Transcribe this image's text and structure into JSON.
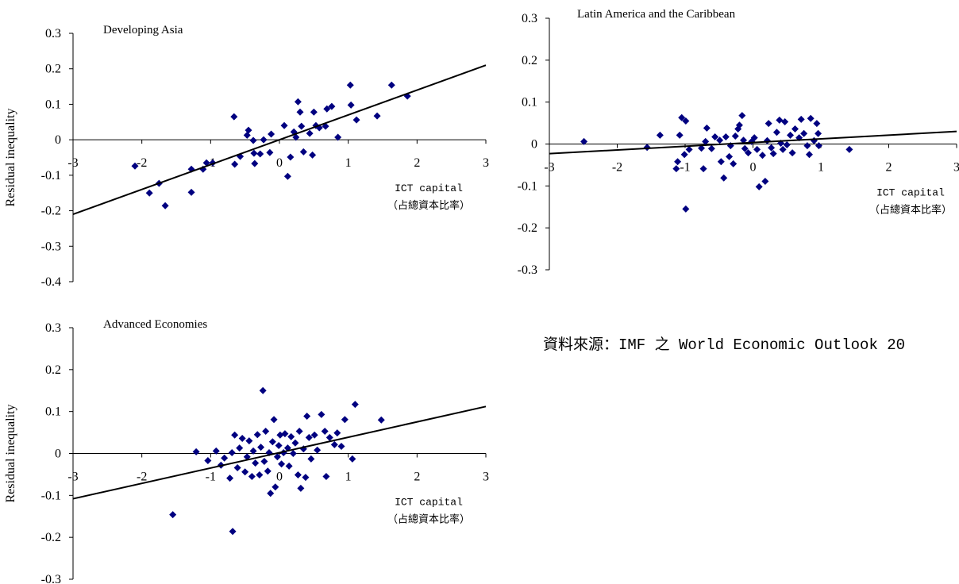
{
  "chart_data": [
    {
      "type": "scatter",
      "title": "Developing Asia",
      "ylabel": "Residual inequality",
      "xlabel": [
        "ICT capital",
        "（占總資本比率）"
      ],
      "color": "#000080",
      "xlim": [
        -3,
        3
      ],
      "xticks": [
        -3,
        -2,
        -1,
        0,
        1,
        2,
        3
      ],
      "ylim": [
        -0.4,
        0.3
      ],
      "yticks": [
        -0.4,
        -0.3,
        -0.2,
        -0.1,
        0,
        0.1,
        0.2,
        0.3
      ],
      "x": [
        -2.1,
        -1.89,
        -1.75,
        -1.66,
        -1.28,
        -1.28,
        -1.11,
        -1.06,
        -0.97,
        -0.66,
        -0.65,
        -0.57,
        -0.47,
        -0.45,
        -0.38,
        -0.37,
        -0.36,
        -0.28,
        -0.23,
        -0.14,
        -0.12,
        0.07,
        0.12,
        0.16,
        0.21,
        0.24,
        0.27,
        0.3,
        0.32,
        0.35,
        0.44,
        0.48,
        0.5,
        0.53,
        0.58,
        0.67,
        0.69,
        0.76,
        0.85,
        1.03,
        1.04,
        1.12,
        1.42,
        1.63,
        1.86
      ],
      "values": [
        -0.074,
        -0.15,
        -0.123,
        -0.186,
        -0.083,
        -0.148,
        -0.083,
        -0.065,
        -0.065,
        0.065,
        -0.069,
        -0.047,
        0.013,
        0.027,
        -0.002,
        -0.038,
        -0.067,
        -0.04,
        0,
        -0.036,
        0.016,
        0.04,
        -0.103,
        -0.049,
        0.022,
        0.007,
        0.107,
        0.078,
        0.038,
        -0.034,
        0.018,
        -0.043,
        0.078,
        0.04,
        0.034,
        0.038,
        0.087,
        0.094,
        0.007,
        0.154,
        0.098,
        0.056,
        0.067,
        0.154,
        0.123
      ],
      "trendline": {
        "x": [
          -3,
          3
        ],
        "y": [
          -0.21,
          0.21
        ]
      }
    },
    {
      "type": "scatter",
      "title": "Latin America and the Caribbean",
      "xlabel": [
        "ICT capital",
        "（占總資本比率）"
      ],
      "color": "#000080",
      "xlim": [
        -3,
        3
      ],
      "xticks": [
        -3,
        -2,
        -1,
        0,
        1,
        2,
        3
      ],
      "ylim": [
        -0.3,
        0.3
      ],
      "yticks": [
        -0.3,
        -0.2,
        -0.1,
        0,
        0.1,
        0.2,
        0.3
      ],
      "x": [
        -2.49,
        -1.56,
        -1.37,
        -1.13,
        -1.11,
        -1.08,
        -1.05,
        -1.01,
        -0.99,
        -0.99,
        -0.94,
        -0.76,
        -0.73,
        -0.7,
        -0.68,
        -0.61,
        -0.56,
        -0.49,
        -0.47,
        -0.43,
        -0.4,
        -0.35,
        -0.33,
        -0.29,
        -0.26,
        -0.22,
        -0.2,
        -0.16,
        -0.14,
        -0.12,
        -0.07,
        -0.02,
        0.02,
        0.06,
        0.09,
        0.14,
        0.18,
        0.21,
        0.23,
        0.27,
        0.3,
        0.35,
        0.39,
        0.41,
        0.44,
        0.47,
        0.5,
        0.55,
        0.58,
        0.62,
        0.68,
        0.71,
        0.75,
        0.8,
        0.83,
        0.85,
        0.9,
        0.94,
        0.96,
        0.97,
        1.42
      ],
      "values": [
        0.006,
        -0.008,
        0.021,
        -0.059,
        -0.042,
        0.021,
        0.063,
        -0.025,
        0.055,
        -0.155,
        -0.013,
        -0.01,
        -0.059,
        0.006,
        0.038,
        -0.011,
        0.017,
        0.009,
        -0.042,
        -0.081,
        0.017,
        -0.03,
        -0.004,
        -0.047,
        0.019,
        0.036,
        0.045,
        0.068,
        0.009,
        -0.011,
        -0.021,
        0.006,
        0.015,
        -0.013,
        -0.102,
        -0.027,
        -0.089,
        0.008,
        0.049,
        -0.009,
        -0.023,
        0.028,
        0.057,
        0.002,
        -0.013,
        0.053,
        -0.002,
        0.021,
        -0.021,
        0.036,
        0.015,
        0.059,
        0.025,
        -0.004,
        -0.025,
        0.061,
        0.008,
        0.049,
        0.025,
        -0.004,
        -0.013
      ],
      "trendline": {
        "x": [
          -3,
          3
        ],
        "y": [
          -0.023,
          0.03
        ]
      }
    },
    {
      "type": "scatter",
      "title": "Advanced Economies",
      "ylabel": "Residual inequality",
      "xlabel": [
        "ICT capital",
        "（占總資本比率）"
      ],
      "color": "#000080",
      "xlim": [
        -3,
        3
      ],
      "xticks": [
        -3,
        -2,
        -1,
        0,
        1,
        2,
        3
      ],
      "ylim": [
        -0.3,
        0.3
      ],
      "yticks": [
        -0.3,
        -0.2,
        -0.1,
        0,
        0.1,
        0.2,
        0.3
      ],
      "x": [
        -1.55,
        -1.21,
        -1.04,
        -0.92,
        -0.85,
        -0.8,
        -0.72,
        -0.69,
        -0.68,
        -0.65,
        -0.61,
        -0.58,
        -0.54,
        -0.5,
        -0.47,
        -0.44,
        -0.4,
        -0.38,
        -0.35,
        -0.32,
        -0.29,
        -0.27,
        -0.24,
        -0.22,
        -0.2,
        -0.17,
        -0.15,
        -0.13,
        -0.1,
        -0.08,
        -0.06,
        -0.03,
        -0.01,
        0.01,
        0.03,
        0.06,
        0.08,
        0.12,
        0.14,
        0.17,
        0.2,
        0.23,
        0.27,
        0.29,
        0.31,
        0.35,
        0.38,
        0.4,
        0.43,
        0.46,
        0.51,
        0.55,
        0.61,
        0.66,
        0.68,
        0.73,
        0.8,
        0.84,
        0.9,
        0.95,
        1.06,
        1.1,
        1.48
      ],
      "values": [
        -0.146,
        0.004,
        -0.017,
        0.006,
        -0.028,
        -0.011,
        -0.059,
        0.002,
        -0.186,
        0.044,
        -0.034,
        0.013,
        0.036,
        -0.044,
        -0.008,
        0.03,
        -0.055,
        0.006,
        -0.023,
        0.045,
        -0.051,
        0.015,
        0.15,
        -0.019,
        0.053,
        -0.042,
        0.002,
        -0.095,
        0.028,
        0.081,
        -0.08,
        -0.008,
        0.019,
        0.044,
        -0.025,
        0.002,
        0.047,
        0.013,
        -0.03,
        0.04,
        0,
        0.025,
        -0.051,
        0.053,
        -0.083,
        0.011,
        -0.057,
        0.089,
        0.038,
        -0.013,
        0.044,
        0.008,
        0.093,
        0.053,
        -0.055,
        0.038,
        0.021,
        0.049,
        0.017,
        0.081,
        -0.013,
        0.117,
        0.08
      ],
      "trendline": {
        "x": [
          -3,
          3
        ],
        "y": [
          -0.108,
          0.112
        ]
      }
    }
  ],
  "source": "資料來源：IMF 之 World Economic Outlook 20"
}
